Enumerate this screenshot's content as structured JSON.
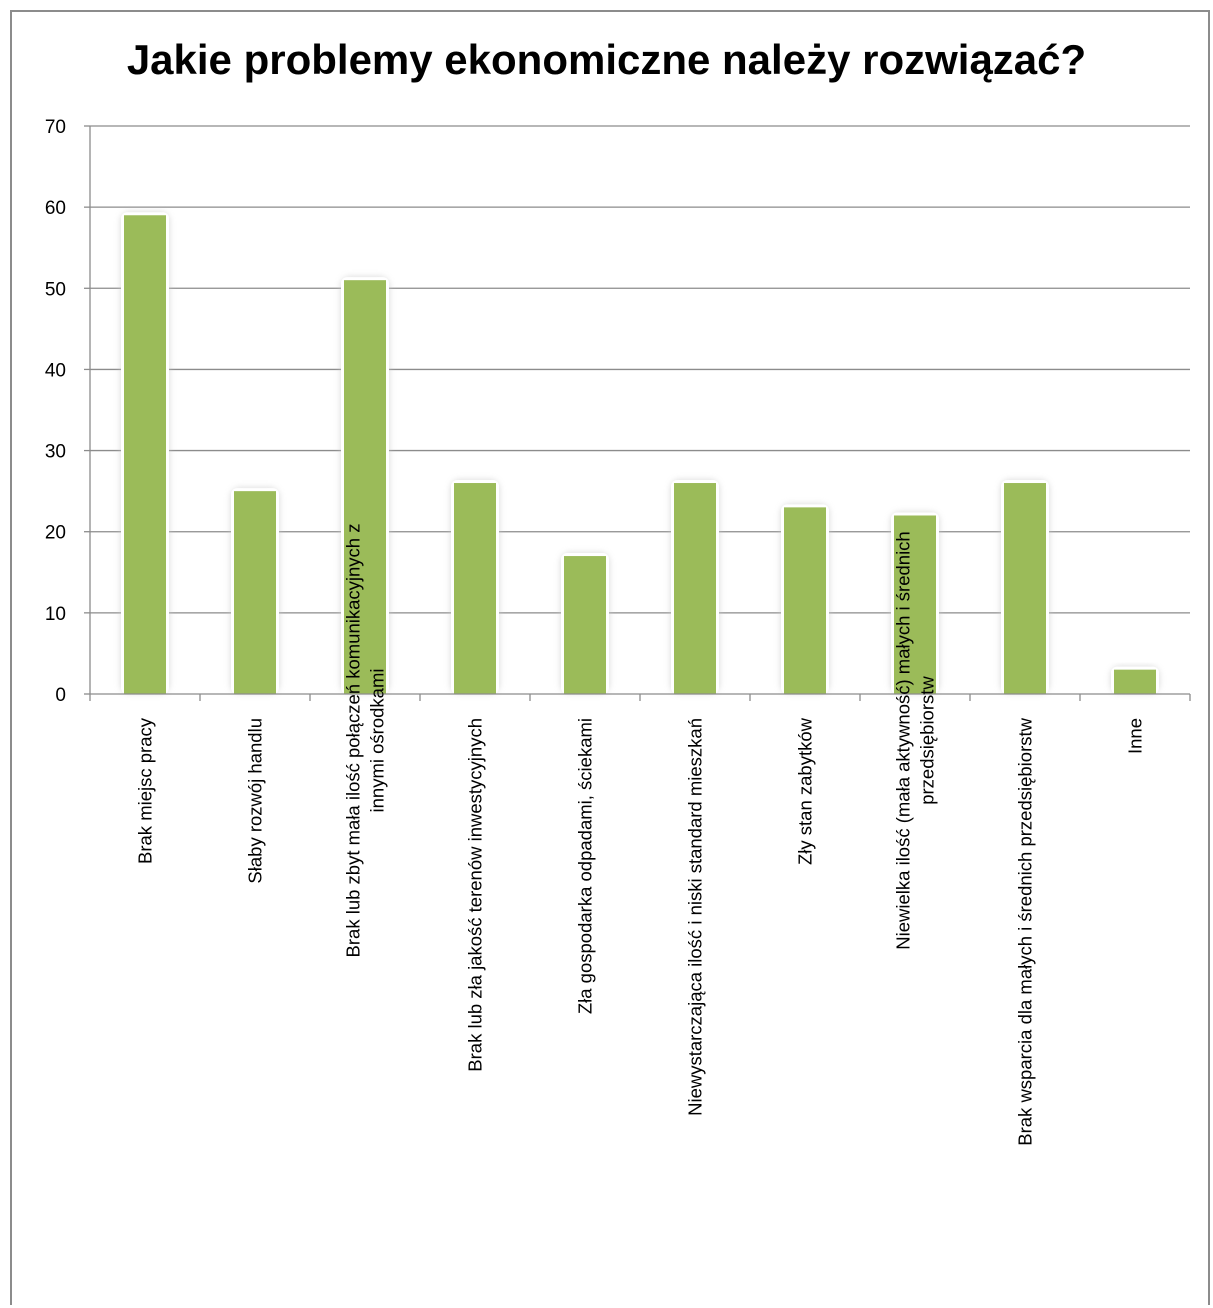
{
  "chart_data": {
    "type": "bar",
    "title": "Jakie problemy ekonomiczne należy rozwiązać?",
    "xlabel": "",
    "ylabel": "",
    "ylim": [
      0,
      70
    ],
    "yticks": [
      0,
      10,
      20,
      30,
      40,
      50,
      60,
      70
    ],
    "grid": true,
    "legend": "none",
    "bar_color": "#9bbb59",
    "categories": [
      [
        "Brak miejsc pracy"
      ],
      [
        "Słaby rozwój handlu"
      ],
      [
        "Brak lub zbyt mała ilość połączeń komunikacyjnych z",
        "innymi ośrodkami"
      ],
      [
        "Brak lub zła jakość terenów inwestycyjnych"
      ],
      [
        "Zła gospodarka odpadami, ściekami"
      ],
      [
        "Niewystarczająca ilość i niski standard mieszkań"
      ],
      [
        "Zły stan zabytków"
      ],
      [
        "Niewielka ilość (mała aktywność) małych i średnich",
        "przedsiębiorstw"
      ],
      [
        "Brak wsparcia dla małych i średnich przedsiębiorstw"
      ],
      [
        "Inne"
      ]
    ],
    "values": [
      59,
      25,
      51,
      26,
      17,
      26,
      23,
      22,
      26,
      3
    ]
  }
}
